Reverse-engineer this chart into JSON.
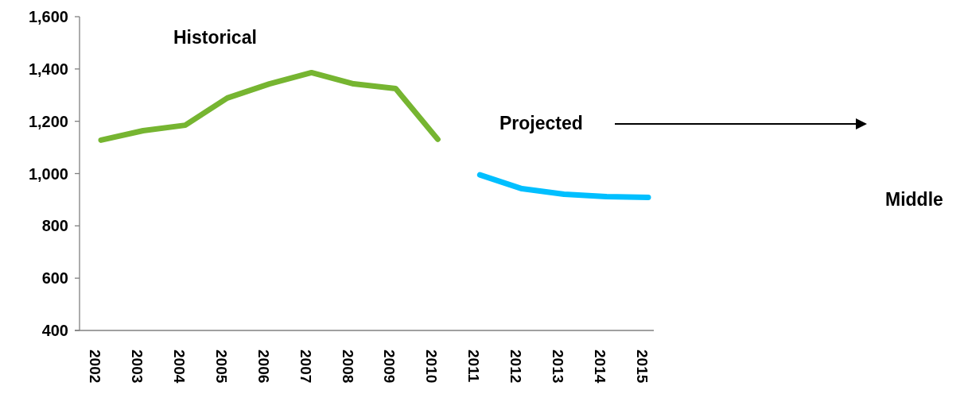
{
  "chart_data": {
    "type": "line",
    "categories": [
      "2002",
      "2003",
      "2004",
      "2005",
      "2006",
      "2007",
      "2008",
      "2009",
      "2010",
      "2011",
      "2012",
      "2013",
      "2014",
      "2015"
    ],
    "series": [
      {
        "color": "#76b531",
        "values": [
          1128,
          1164,
          1185,
          1289,
          1343,
          1386,
          1343,
          1325,
          1131,
          null,
          null,
          null,
          null,
          null
        ]
      },
      {
        "color": "#00bfff",
        "values": [
          null,
          null,
          null,
          null,
          null,
          null,
          null,
          null,
          null,
          995,
          942,
          921,
          912,
          909
        ]
      }
    ],
    "ylim": [
      400,
      1600
    ],
    "yticks": [
      {
        "value": 400,
        "label": "400"
      },
      {
        "value": 600,
        "label": "600"
      },
      {
        "value": 800,
        "label": "800"
      },
      {
        "value": 1000,
        "label": "1,000"
      },
      {
        "value": 1200,
        "label": "1,200"
      },
      {
        "value": 1400,
        "label": "1,400"
      },
      {
        "value": 1600,
        "label": "1,600"
      }
    ],
    "grid": false,
    "marker": "none",
    "line_style": "solid",
    "annotations": [
      "Historical",
      "Projected",
      "Middle"
    ]
  }
}
